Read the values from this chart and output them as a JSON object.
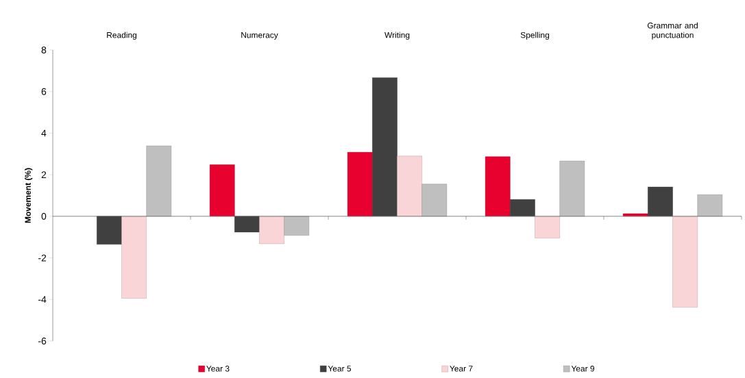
{
  "chart_data": {
    "type": "bar",
    "ylabel": "Movement (%)",
    "categories": [
      "Reading",
      "Numeracy",
      "Writing",
      "Spelling",
      "Grammar and punctuation"
    ],
    "series": [
      {
        "name": "Year 3",
        "color": "#e8002e",
        "values": [
          null,
          2.48,
          3.08,
          2.87,
          0.13
        ]
      },
      {
        "name": "Year 5",
        "color": "#404040",
        "values": [
          -1.35,
          -0.76,
          6.67,
          0.81,
          1.41
        ]
      },
      {
        "name": "Year 7",
        "color": "#f9d5d8",
        "values": [
          -3.95,
          -1.32,
          2.9,
          -1.05,
          -4.38
        ]
      },
      {
        "name": "Year 9",
        "color": "#bfbfbf",
        "values": [
          3.39,
          -0.92,
          1.55,
          2.66,
          1.04
        ]
      }
    ],
    "ylim": [
      -6,
      8
    ],
    "yticks": [
      -6,
      -4,
      -2,
      0,
      2,
      4,
      6,
      8
    ],
    "legend": "bottom"
  }
}
